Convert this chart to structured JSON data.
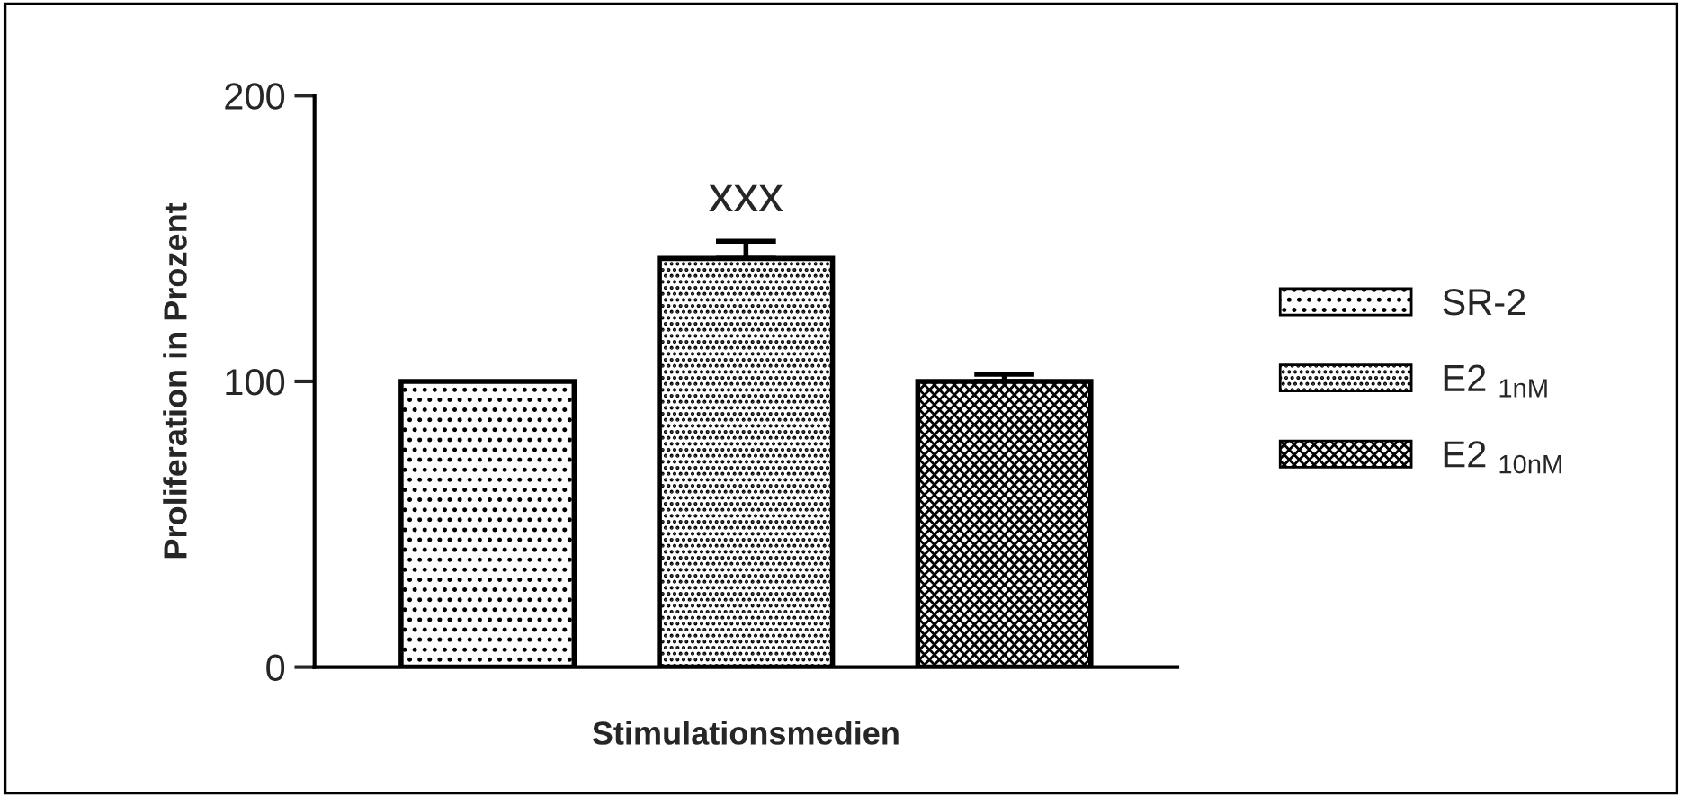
{
  "chart_data": {
    "type": "bar",
    "xlabel": "Stimulationsmedien",
    "ylabel": "Proliferation in Prozent",
    "categories": [
      null,
      null,
      null
    ],
    "series": [
      {
        "name": "SR-2",
        "color": "#000000",
        "values": [
          100,
          null,
          null
        ],
        "errors": [
          null,
          null,
          null
        ]
      },
      {
        "name": "E2 $_{1nM}$",
        "color": "#000000",
        "values": [
          null,
          143,
          null
        ],
        "errors": [
          null,
          6,
          null
        ]
      },
      {
        "name": "E2 $_{10nM}$",
        "color": "#000000",
        "values": [
          null,
          null,
          100
        ],
        "errors": [
          null,
          null,
          2.5
        ]
      }
    ],
    "ylim": [
      0,
      200
    ],
    "yticks": [
      0,
      100,
      200
    ],
    "legend": "right",
    "grid": false,
    "annotations": [
      "xxx"
    ]
  }
}
